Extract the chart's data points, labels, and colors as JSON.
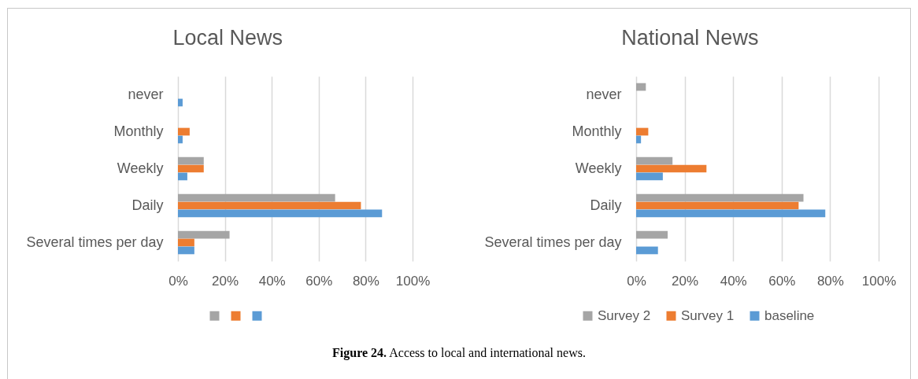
{
  "chart_data": [
    {
      "type": "bar",
      "title": "Local News",
      "orientation": "horizontal",
      "categories": [
        "never",
        "Monthly",
        "Weekly",
        "Daily",
        "Several times per day"
      ],
      "series": [
        {
          "color": "#a5a5a5",
          "values": [
            null,
            null,
            11,
            67,
            22
          ]
        },
        {
          "color": "#ed7d31",
          "values": [
            null,
            5,
            11,
            78,
            7
          ]
        },
        {
          "color": "#5b9bd5",
          "values": [
            2,
            2,
            4,
            87,
            7
          ]
        }
      ],
      "xlim": [
        0,
        100
      ],
      "xticks": [
        {
          "value": 0,
          "label": "0%"
        },
        {
          "value": 20,
          "label": "20%"
        },
        {
          "value": 40,
          "label": "40%"
        },
        {
          "value": 60,
          "label": "60%"
        },
        {
          "value": 80,
          "label": "80%"
        },
        {
          "value": 100,
          "label": "100%"
        }
      ],
      "grid": "x",
      "legend": "bottom"
    },
    {
      "type": "bar",
      "title": "National News",
      "orientation": "horizontal",
      "categories": [
        "never",
        "Monthly",
        "Weekly",
        "Daily",
        "Several times per day"
      ],
      "series": [
        {
          "name": "Survey 2",
          "color": "#a5a5a5",
          "values": [
            4,
            null,
            15,
            69,
            13
          ]
        },
        {
          "name": "Survey 1",
          "color": "#ed7d31",
          "values": [
            null,
            5,
            29,
            67,
            null
          ]
        },
        {
          "name": "baseline",
          "color": "#5b9bd5",
          "values": [
            null,
            2,
            11,
            78,
            9
          ]
        }
      ],
      "xlim": [
        0,
        100
      ],
      "xticks": [
        {
          "value": 0,
          "label": "0%"
        },
        {
          "value": 20,
          "label": "20%"
        },
        {
          "value": 40,
          "label": "40%"
        },
        {
          "value": 60,
          "label": "60%"
        },
        {
          "value": 80,
          "label": "80%"
        },
        {
          "value": 100,
          "label": "100%"
        }
      ],
      "grid": "x",
      "legend": "bottom",
      "annotations": [
        "Figure 24. Access to local and international news."
      ]
    }
  ]
}
